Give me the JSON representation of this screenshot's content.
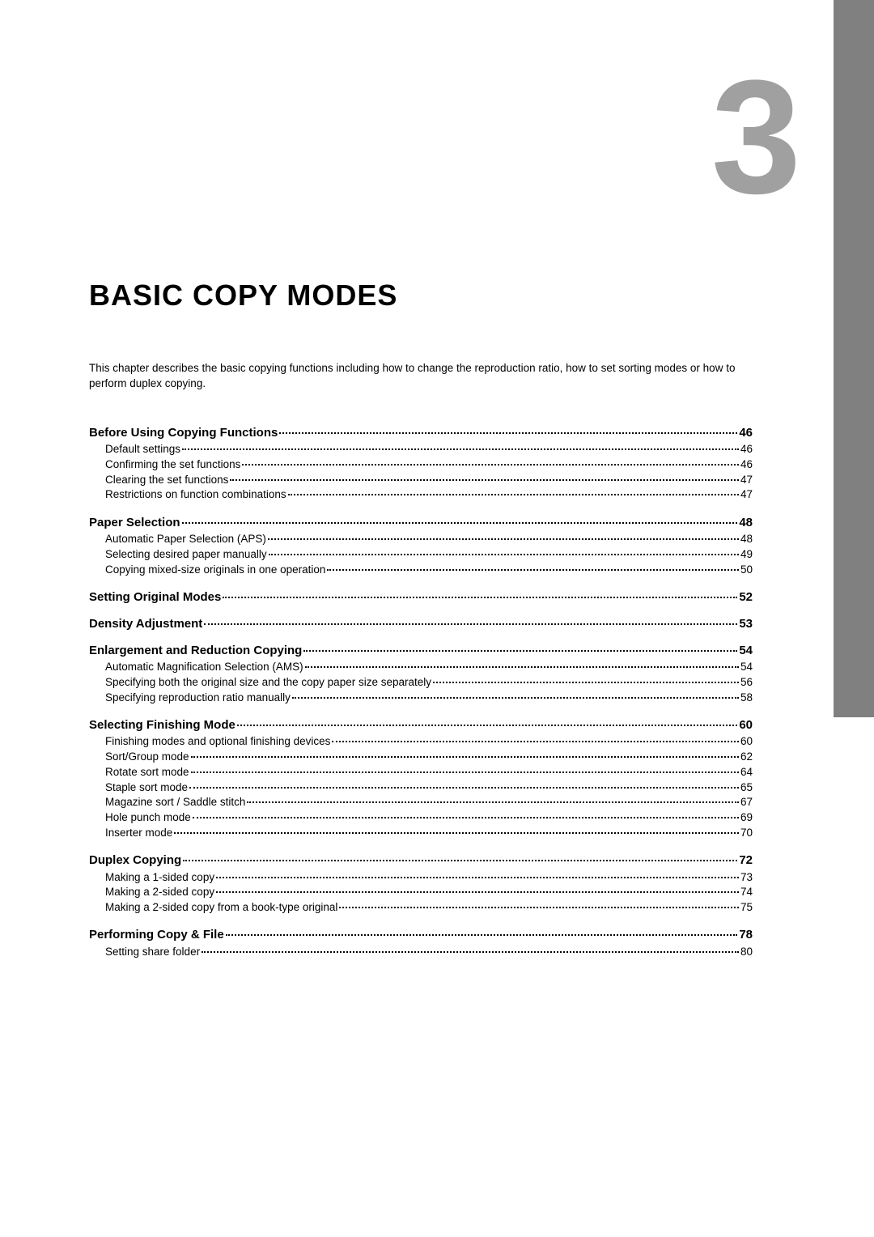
{
  "chapter_number": "3",
  "chapter_title": "BASIC COPY MODES",
  "chapter_description": "This chapter describes the basic copying functions including how to change the reproduction ratio, how to set sorting modes or how to perform duplex copying.",
  "sidebar_color": "#808080",
  "chapter_number_color": "#a0a0a0",
  "heading_font_size": 15,
  "item_font_size": 13.5,
  "toc": [
    {
      "heading": "Before Using Copying Functions",
      "page": "46",
      "items": [
        {
          "label": "Default settings",
          "page": "46"
        },
        {
          "label": "Confirming the set functions",
          "page": "46"
        },
        {
          "label": "Clearing the set functions",
          "page": "47"
        },
        {
          "label": "Restrictions on function combinations",
          "page": "47"
        }
      ]
    },
    {
      "heading": "Paper Selection",
      "page": "48",
      "items": [
        {
          "label": "Automatic Paper Selection (APS)",
          "page": "48"
        },
        {
          "label": "Selecting desired paper manually",
          "page": "49"
        },
        {
          "label": "Copying mixed-size originals in one operation",
          "page": "50"
        }
      ]
    },
    {
      "heading": "Setting Original Modes",
      "page": "52",
      "items": []
    },
    {
      "heading": "Density Adjustment",
      "page": "53",
      "items": []
    },
    {
      "heading": "Enlargement and Reduction Copying",
      "page": "54",
      "items": [
        {
          "label": "Automatic Magnification Selection (AMS)",
          "page": "54"
        },
        {
          "label": "Specifying both the original size and the copy paper size separately",
          "page": "56"
        },
        {
          "label": "Specifying reproduction ratio manually",
          "page": "58"
        }
      ]
    },
    {
      "heading": "Selecting Finishing Mode",
      "page": "60",
      "items": [
        {
          "label": "Finishing modes and optional finishing devices",
          "page": "60"
        },
        {
          "label": "Sort/Group mode",
          "page": "62"
        },
        {
          "label": "Rotate sort mode",
          "page": "64"
        },
        {
          "label": "Staple sort mode",
          "page": "65"
        },
        {
          "label": "Magazine sort / Saddle stitch",
          "page": "67"
        },
        {
          "label": "Hole punch mode",
          "page": "69"
        },
        {
          "label": "Inserter mode",
          "page": "70"
        }
      ]
    },
    {
      "heading": "Duplex Copying",
      "page": "72",
      "items": [
        {
          "label": "Making a 1-sided copy",
          "page": "73"
        },
        {
          "label": "Making a 2-sided copy",
          "page": "74"
        },
        {
          "label": "Making a 2-sided copy from a book-type original",
          "page": "75"
        }
      ]
    },
    {
      "heading": "Performing Copy & File",
      "page": "78",
      "items": [
        {
          "label": "Setting share folder",
          "page": "80"
        }
      ]
    }
  ]
}
